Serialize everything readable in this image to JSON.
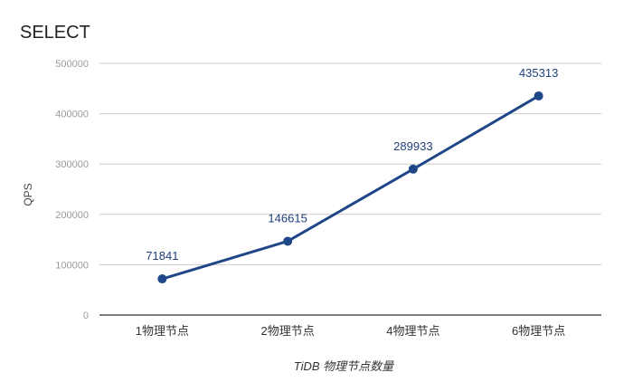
{
  "chart_data": {
    "type": "line",
    "title": "SELECT",
    "xlabel": "TiDB 物理节点数量",
    "ylabel": "QPS",
    "categories": [
      "1物理节点",
      "2物理节点",
      "4物理节点",
      "6物理节点"
    ],
    "series": [
      {
        "values": [
          71841,
          146615,
          289933,
          435313
        ]
      }
    ],
    "ylim": [
      0,
      500000
    ],
    "yticks": [
      "0",
      "100000",
      "200000",
      "300000",
      "400000",
      "500000"
    ],
    "data_labels": [
      "71841",
      "146615",
      "289933",
      "435313"
    ],
    "grid": true,
    "legend": "none",
    "colors": {
      "line": "#1f4788",
      "grid": "#cccccc",
      "axis": "#333333"
    }
  }
}
